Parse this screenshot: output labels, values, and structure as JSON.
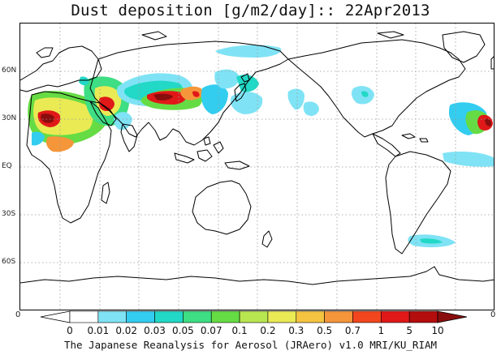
{
  "title": "Dust deposition [g/m2/day]:: 22Apr2013",
  "footer": "The Japanese Reanalysis for Aerosol (JRAero) v1.0 MRI/KU_RIAM",
  "axes": {
    "lat_labels": [
      "60N",
      "30N",
      "EQ",
      "30S",
      "60S"
    ],
    "edge_left": "0",
    "edge_right": "0"
  },
  "colorbar": {
    "labels": [
      "0",
      "0.01",
      "0.02",
      "0.03",
      "0.05",
      "0.07",
      "0.1",
      "0.2",
      "0.3",
      "0.5",
      "0.7",
      "1",
      "5",
      "10"
    ],
    "colors": [
      "#ffffff",
      "#ffffff",
      "#7fe3f5",
      "#33cdf0",
      "#22d8c6",
      "#3dde84",
      "#66dc44",
      "#b8e650",
      "#eaea55",
      "#f5c440",
      "#f5963a",
      "#f2461e",
      "#e01818",
      "#b30d0d",
      "#8a0d0d"
    ]
  },
  "colors": {
    "land": "#ffffff",
    "coast": "#000000",
    "grid": "#9a9a9a"
  }
}
